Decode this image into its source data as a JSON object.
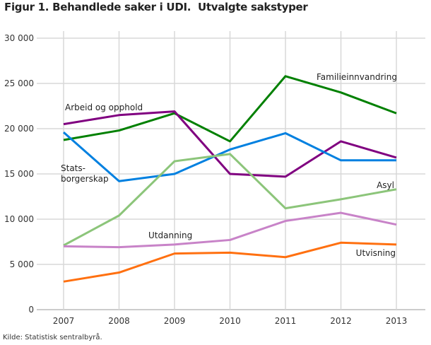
{
  "chart_data": {
    "type": "line",
    "title": "Figur 1. Behandlede saker i UDI.  Utvalgte sakstyper",
    "source": "Kilde: Statistisk sentralbyrå.",
    "x": [
      "2007",
      "2008",
      "2009",
      "2010",
      "2011",
      "2012",
      "2013"
    ],
    "ylim": [
      0,
      30000
    ],
    "yticks": [
      0,
      5000,
      10000,
      15000,
      20000,
      25000,
      30000
    ],
    "ytick_labels": [
      "0",
      "5 000",
      "10 000",
      "15 000",
      "20 000",
      "25 000",
      "30 000"
    ],
    "grid": true,
    "series": [
      {
        "name": "Familieinnvandring",
        "color": "#008000",
        "values": [
          18750,
          19800,
          21700,
          18600,
          25800,
          24000,
          21700
        ]
      },
      {
        "name": "Arbeid og opphold",
        "color": "#800080",
        "values": [
          20500,
          21500,
          21900,
          15000,
          14700,
          18600,
          16800
        ]
      },
      {
        "name": "Stats-\nborgerskap",
        "color": "#0080e0",
        "values": [
          19600,
          14200,
          15000,
          17700,
          19500,
          16500,
          16500
        ]
      },
      {
        "name": "Asyl",
        "color": "#8cc57a",
        "values": [
          7100,
          10400,
          16400,
          17200,
          11200,
          12200,
          13300
        ]
      },
      {
        "name": "Utdanning",
        "color": "#c883c8",
        "values": [
          7000,
          6900,
          7200,
          7700,
          9800,
          10700,
          9400
        ]
      },
      {
        "name": "Utvisning",
        "color": "#ff7010",
        "values": [
          3100,
          4100,
          6200,
          6300,
          5800,
          7400,
          7200
        ]
      }
    ]
  }
}
